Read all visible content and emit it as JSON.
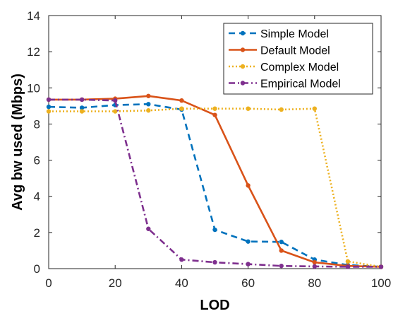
{
  "chart_data": {
    "type": "line",
    "title": "",
    "xlabel": "LOD",
    "ylabel": "Avg bw used (Mbps)",
    "xlim": [
      0,
      100
    ],
    "ylim": [
      0,
      14
    ],
    "xticks": [
      0,
      20,
      40,
      60,
      80,
      100
    ],
    "yticks": [
      0,
      2,
      4,
      6,
      8,
      10,
      12,
      14
    ],
    "grid": false,
    "legend_position": "top-right",
    "series": [
      {
        "name": "Simple Model",
        "color": "#0072BD",
        "line_style": "dashed",
        "points": [
          [
            0,
            8.95
          ],
          [
            10,
            8.9
          ],
          [
            20,
            9.05
          ],
          [
            30,
            9.1
          ],
          [
            40,
            8.8
          ],
          [
            50,
            2.15
          ],
          [
            60,
            1.5
          ],
          [
            70,
            1.48
          ],
          [
            80,
            0.5
          ],
          [
            90,
            0.2
          ],
          [
            100,
            0.1
          ]
        ]
      },
      {
        "name": "Default Model",
        "color": "#D95319",
        "line_style": "solid",
        "points": [
          [
            0,
            9.35
          ],
          [
            10,
            9.35
          ],
          [
            20,
            9.4
          ],
          [
            30,
            9.55
          ],
          [
            40,
            9.3
          ],
          [
            50,
            8.5
          ],
          [
            60,
            4.6
          ],
          [
            70,
            1.0
          ],
          [
            80,
            0.35
          ],
          [
            90,
            0.15
          ],
          [
            100,
            0.1
          ]
        ]
      },
      {
        "name": "Complex Model",
        "color": "#EDB120",
        "line_style": "dotted",
        "points": [
          [
            0,
            8.7
          ],
          [
            10,
            8.7
          ],
          [
            20,
            8.7
          ],
          [
            30,
            8.75
          ],
          [
            40,
            8.85
          ],
          [
            50,
            8.85
          ],
          [
            60,
            8.85
          ],
          [
            70,
            8.8
          ],
          [
            80,
            8.85
          ],
          [
            90,
            0.4
          ],
          [
            100,
            0.1
          ]
        ]
      },
      {
        "name": "Empirical Model",
        "color": "#7E2F8E",
        "line_style": "dashdot",
        "points": [
          [
            0,
            9.35
          ],
          [
            10,
            9.35
          ],
          [
            20,
            9.3
          ],
          [
            30,
            2.2
          ],
          [
            40,
            0.5
          ],
          [
            50,
            0.35
          ],
          [
            60,
            0.25
          ],
          [
            70,
            0.15
          ],
          [
            80,
            0.12
          ],
          [
            90,
            0.1
          ],
          [
            100,
            0.1
          ]
        ]
      }
    ]
  }
}
